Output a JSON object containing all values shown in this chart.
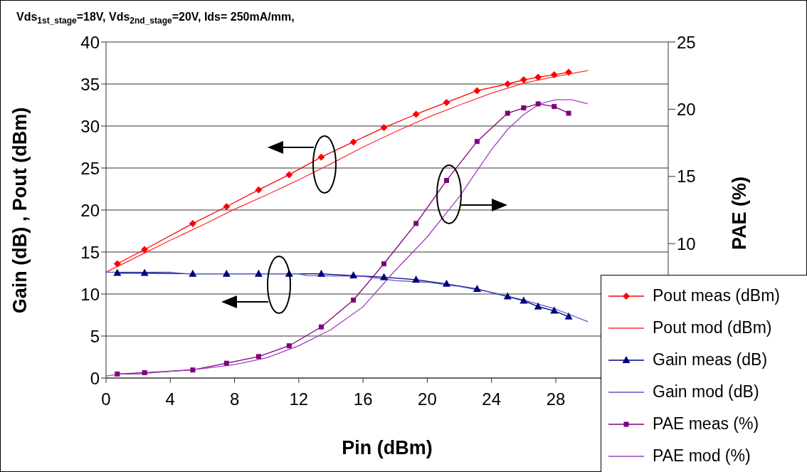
{
  "chart_data": {
    "type": "line",
    "title": "Vds$_{1st_stage}$=18V, Vds$_{2nd_stage}$=20V, Ids= 250mA/mm,",
    "xlabel": "Pin (dBm)",
    "ylabel": "Gain (dB) , Pout (dBm)",
    "y2label": "PAE (%)",
    "xlim": [
      0,
      35
    ],
    "xticks": [
      0,
      4,
      8,
      12,
      16,
      20,
      24,
      28
    ],
    "ylim": [
      0,
      40
    ],
    "yticks": [
      0,
      5,
      10,
      15,
      20,
      25,
      30,
      35,
      40
    ],
    "y2lim": [
      0,
      25
    ],
    "y2ticks": [
      10,
      15,
      20,
      25
    ],
    "grid": "y",
    "legend": "bottom right",
    "series": [
      {
        "name": "Pout meas (dBm)",
        "color": "#ff0000",
        "marker": "diamond",
        "x": [
          0.7,
          2.4,
          5.4,
          7.5,
          9.5,
          11.4,
          13.4,
          15.4,
          17.3,
          19.3,
          21.2,
          23.1,
          25.0,
          26.0,
          26.9,
          27.9,
          28.8
        ],
        "values": [
          13.6,
          15.3,
          18.4,
          20.4,
          22.4,
          24.2,
          26.3,
          28.1,
          29.8,
          31.4,
          32.8,
          34.2,
          35.0,
          35.5,
          35.8,
          36.1,
          36.4
        ]
      },
      {
        "name": "Pout mod (dBm)",
        "color": "#ff3030",
        "marker": "none",
        "x": [
          0,
          2,
          4,
          6,
          8,
          10,
          12,
          14,
          16,
          18,
          20,
          22,
          24,
          26,
          28,
          30
        ],
        "values": [
          12.6,
          14.5,
          16.4,
          18.2,
          20.1,
          21.8,
          23.6,
          25.5,
          27.5,
          29.3,
          31.0,
          32.5,
          33.9,
          35.1,
          35.9,
          36.6
        ]
      },
      {
        "name": "Gain meas (dB)",
        "color": "#000080",
        "marker": "triangle",
        "x": [
          0.7,
          2.4,
          5.4,
          7.5,
          9.5,
          11.4,
          13.4,
          15.4,
          17.3,
          19.3,
          21.2,
          23.1,
          25.0,
          26.0,
          26.9,
          27.9,
          28.8
        ],
        "values": [
          12.5,
          12.5,
          12.4,
          12.4,
          12.4,
          12.4,
          12.4,
          12.2,
          12.0,
          11.7,
          11.2,
          10.6,
          9.7,
          9.2,
          8.5,
          8.0,
          7.3
        ]
      },
      {
        "name": "Gain mod (dB)",
        "color": "#5858c8",
        "marker": "none",
        "x": [
          0,
          4,
          5,
          12,
          12.5,
          16,
          18,
          20,
          22,
          24,
          26,
          28,
          30
        ],
        "values": [
          12.6,
          12.6,
          12.4,
          12.4,
          12.2,
          12.1,
          11.6,
          11.4,
          10.9,
          10.2,
          9.3,
          8.2,
          6.7
        ]
      },
      {
        "name": "PAE meas (%)",
        "color": "#800080",
        "marker": "square",
        "axis": "y2",
        "x": [
          0.7,
          2.4,
          5.4,
          7.5,
          9.5,
          11.4,
          13.4,
          15.4,
          17.3,
          19.3,
          21.2,
          23.1,
          25.0,
          26.0,
          26.9,
          27.9,
          28.8
        ],
        "values": [
          0.3,
          0.4,
          0.6,
          1.1,
          1.6,
          2.4,
          3.8,
          5.8,
          8.5,
          11.5,
          14.7,
          17.6,
          19.7,
          20.1,
          20.4,
          20.2,
          19.7
        ]
      },
      {
        "name": "PAE mod (%)",
        "color": "#a040c0",
        "marker": "none",
        "axis": "y2",
        "x": [
          0,
          1,
          2,
          3,
          4,
          6,
          8,
          10,
          12,
          14,
          16,
          18,
          20,
          22,
          24,
          25,
          26,
          27,
          28,
          29,
          30
        ],
        "values": [
          0.15,
          0.3,
          0.3,
          0.4,
          0.5,
          0.7,
          1.0,
          1.5,
          2.4,
          3.6,
          5.3,
          8.0,
          10.5,
          13.5,
          17.0,
          18.5,
          19.6,
          20.4,
          20.7,
          20.7,
          20.4
        ]
      }
    ]
  }
}
